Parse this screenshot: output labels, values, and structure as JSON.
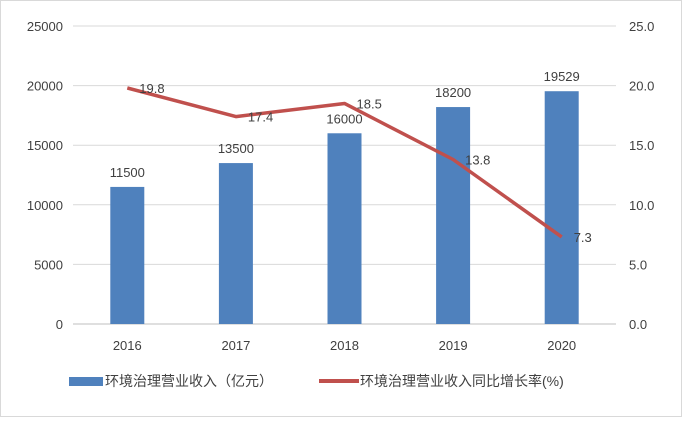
{
  "chart_data": {
    "type": "bar+line",
    "categories": [
      "2016",
      "2017",
      "2018",
      "2019",
      "2020"
    ],
    "series": [
      {
        "name": "环境治理营业收入（亿元）",
        "type": "bar",
        "axis": "left",
        "values": [
          11500,
          13500,
          16000,
          18200,
          19529
        ],
        "labels": [
          "11500",
          "13500",
          "16000",
          "18200",
          "19529"
        ],
        "color": "#4F81BD"
      },
      {
        "name": "环境治理营业收入同比增长率(%)",
        "type": "line",
        "axis": "right",
        "values": [
          19.8,
          17.4,
          18.5,
          13.8,
          7.3
        ],
        "labels": [
          "19.8",
          "17.4",
          "18.5",
          "13.8",
          "7.3"
        ],
        "color": "#C0504D"
      }
    ],
    "y_left": {
      "range": [
        0,
        25000
      ],
      "ticks": [
        "0",
        "5000",
        "10000",
        "15000",
        "20000",
        "25000"
      ]
    },
    "y_right": {
      "range": [
        0,
        25
      ],
      "ticks": [
        "0.0",
        "5.0",
        "10.0",
        "15.0",
        "20.0",
        "25.0"
      ]
    },
    "grid": true,
    "legend": "bottom"
  }
}
